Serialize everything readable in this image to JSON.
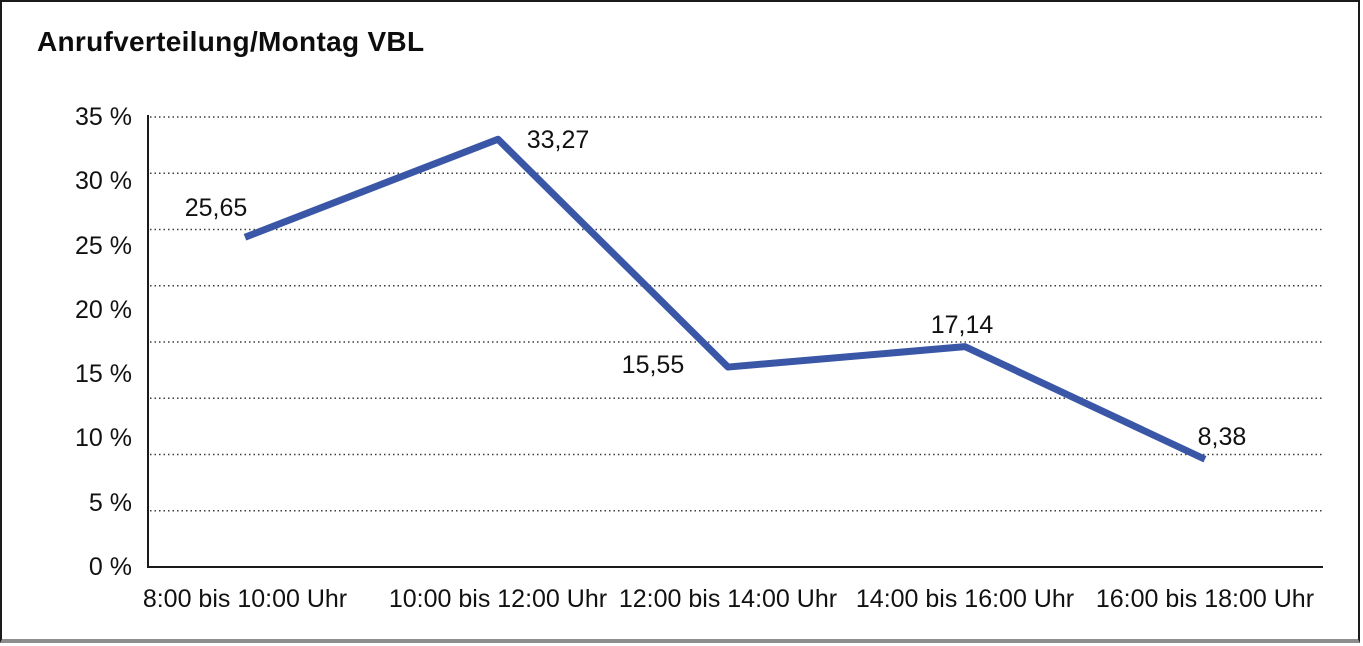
{
  "chart_data": {
    "type": "line",
    "title": "Anrufverteilung/Montag VBL",
    "categories": [
      "8:00 bis 10:00 Uhr",
      "10:00 bis 12:00 Uhr",
      "12:00 bis 14:00 Uhr",
      "14:00 bis 16:00 Uhr",
      "16:00 bis 18:00 Uhr"
    ],
    "values": [
      25.65,
      33.27,
      15.55,
      17.14,
      8.38
    ],
    "point_labels": [
      "25,65",
      "33,27",
      "15,55",
      "17,14",
      "8,38"
    ],
    "xlabel": "",
    "ylabel": "",
    "ylim": [
      0,
      35
    ],
    "ytick_labels": [
      "35 %",
      "30 %",
      "25 %",
      "20 %",
      "15 %",
      "10 %",
      "5 %",
      "0 %"
    ],
    "grid": "horizontal-dotted",
    "n_grid_intervals": 8,
    "legend": "none",
    "decimal_separator": ",",
    "colors": {
      "series_line": "#3A56A6",
      "axis": "#1a1a1a",
      "gridline": "#3c3c3c",
      "text": "#111111",
      "frame_border": "#1b1b1b",
      "frame_bottom": "#8e8e8e",
      "background": "#ffffff"
    }
  }
}
